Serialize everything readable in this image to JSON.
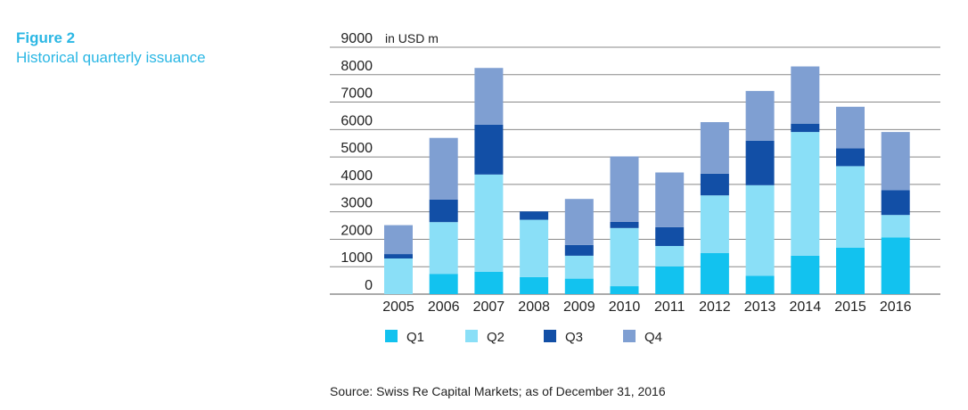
{
  "figure": {
    "label": "Figure 2",
    "title": "Historical quarterly issuance"
  },
  "source": "Source: Swiss Re Capital Markets; as of December 31, 2016",
  "chart_data": {
    "type": "bar",
    "stacked": true,
    "unit_label": "in USD m",
    "categories": [
      "2005",
      "2006",
      "2007",
      "2008",
      "2009",
      "2010",
      "2011",
      "2012",
      "2013",
      "2014",
      "2015",
      "2016"
    ],
    "series": [
      {
        "name": "Q1",
        "color": "#12c2ef",
        "values": [
          0,
          740,
          815,
          620,
          565,
          290,
          1010,
          1495,
          670,
          1400,
          1690,
          2070
        ]
      },
      {
        "name": "Q2",
        "color": "#8adff7",
        "values": [
          1300,
          1885,
          3545,
          2090,
          835,
          2120,
          745,
          2105,
          3300,
          4510,
          2975,
          815
        ]
      },
      {
        "name": "Q3",
        "color": "#124fa6",
        "values": [
          160,
          825,
          1820,
          305,
          390,
          225,
          685,
          790,
          1625,
          305,
          650,
          900
        ]
      },
      {
        "name": "Q4",
        "color": "#7f9fd2",
        "values": [
          1055,
          2245,
          2065,
          0,
          1680,
          2385,
          1995,
          1880,
          1810,
          2085,
          1515,
          2125
        ]
      }
    ],
    "ylim": [
      0,
      9000
    ],
    "yticks": [
      0,
      1000,
      2000,
      3000,
      4000,
      5000,
      6000,
      7000,
      8000,
      9000
    ],
    "grid": true,
    "legend": "bottom"
  }
}
